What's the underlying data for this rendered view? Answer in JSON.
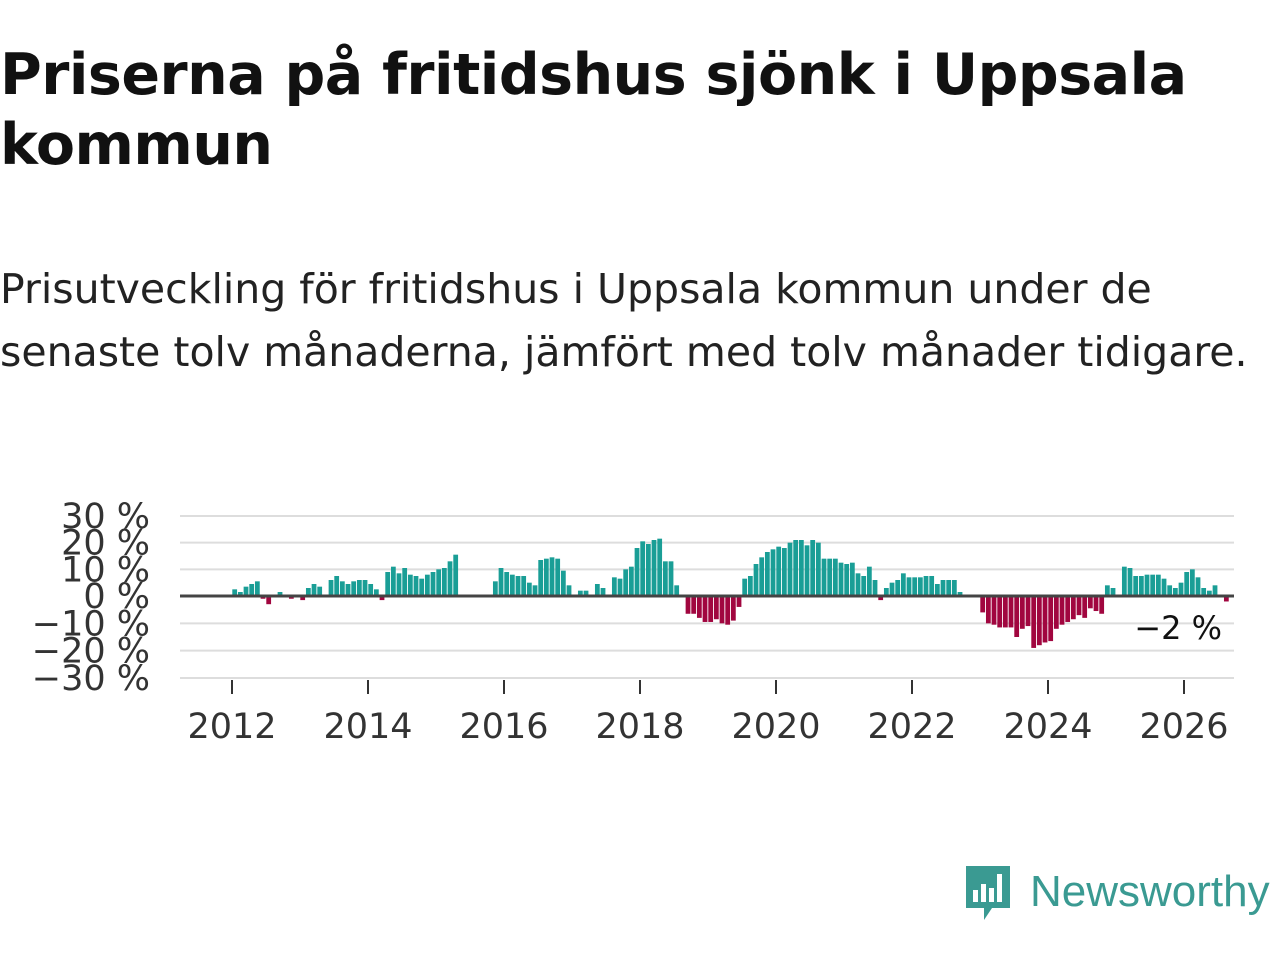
{
  "title": "Priserna på fritidshus sjönk i Uppsala kommun",
  "subtitle": "Prisutveckling för fritidshus i Uppsala kommun under de senaste tolv månaderna, jämfört med tolv månader tidigare.",
  "brand": {
    "name": "Newsworthy",
    "color": "#3a9a92"
  },
  "colors": {
    "positive": "#1a9e96",
    "negative": "#a1063f",
    "zero_line": "#444444",
    "grid": "#dddddd"
  },
  "chart_data": {
    "type": "bar",
    "title": "Priserna på fritidshus sjönk i Uppsala kommun",
    "xlabel": "",
    "ylabel": "",
    "ylim": [
      -30,
      30
    ],
    "yticks": [
      30,
      20,
      10,
      0,
      -10,
      -20,
      -30
    ],
    "ytick_labels": [
      "30 %",
      "20 %",
      "10 %",
      "0 %",
      "−10 %",
      "−20 %",
      "−30 %"
    ],
    "xticks": [
      2012,
      2014,
      2016,
      2018,
      2020,
      2022,
      2024,
      2026
    ],
    "xlim": [
      2011.25,
      2026.75
    ],
    "grid": true,
    "annotation": "−2 %",
    "series": [
      {
        "name": "Prisutveckling",
        "frequency": "monthly",
        "start": "2012-01",
        "values": [
          2.5,
          1.5,
          3.5,
          4.5,
          5.5,
          -1.0,
          -3.0,
          0,
          1.5,
          0,
          -1.0,
          0,
          -1.5,
          3.0,
          4.5,
          3.5,
          0,
          6.0,
          7.5,
          5.5,
          4.5,
          5.5,
          6.0,
          6.0,
          4.5,
          2.5,
          -1.5,
          9.0,
          11.0,
          8.5,
          10.5,
          8.0,
          7.5,
          6.5,
          8.0,
          9.0,
          10.0,
          10.5,
          13.0,
          15.5,
          0,
          0,
          0,
          -0.5,
          0,
          0,
          5.5,
          10.5,
          9.0,
          8.0,
          7.5,
          7.5,
          5.0,
          4.0,
          13.5,
          14.0,
          14.5,
          14.0,
          9.5,
          4.0,
          0,
          2.0,
          2.0,
          0,
          4.5,
          3.0,
          0,
          7.0,
          6.5,
          10.0,
          11.0,
          18.0,
          20.5,
          19.5,
          21.0,
          21.5,
          13.0,
          13.0,
          4.0,
          0,
          -6.5,
          -6.5,
          -8.0,
          -9.5,
          -9.5,
          -8.5,
          -10.0,
          -10.5,
          -9.0,
          -4.0,
          6.5,
          7.5,
          12.0,
          14.5,
          16.5,
          17.5,
          18.5,
          18.0,
          20.0,
          21.0,
          21.0,
          19.0,
          21.0,
          20.0,
          14.0,
          14.0,
          14.0,
          12.5,
          12.0,
          12.5,
          8.5,
          7.5,
          11.0,
          6.0,
          -1.5,
          3.0,
          5.0,
          6.0,
          8.5,
          7.0,
          7.0,
          7.0,
          7.5,
          7.5,
          4.5,
          6.0,
          6.0,
          6.0,
          1.5,
          0,
          0,
          0,
          -6.0,
          -10.0,
          -10.5,
          -11.5,
          -11.5,
          -11.5,
          -15.0,
          -12.0,
          -11.0,
          -19.0,
          -18.0,
          -17.0,
          -16.5,
          -12.0,
          -10.5,
          -9.5,
          -8.5,
          -7.0,
          -8.0,
          -4.5,
          -5.5,
          -6.5,
          4.0,
          3.0,
          0,
          11.0,
          10.5,
          7.5,
          7.5,
          8.0,
          8.0,
          8.0,
          6.5,
          4.0,
          3.0,
          5.0,
          9.0,
          10.0,
          7.0,
          3.0,
          2.0,
          4.0,
          0,
          -2.0
        ]
      }
    ]
  }
}
